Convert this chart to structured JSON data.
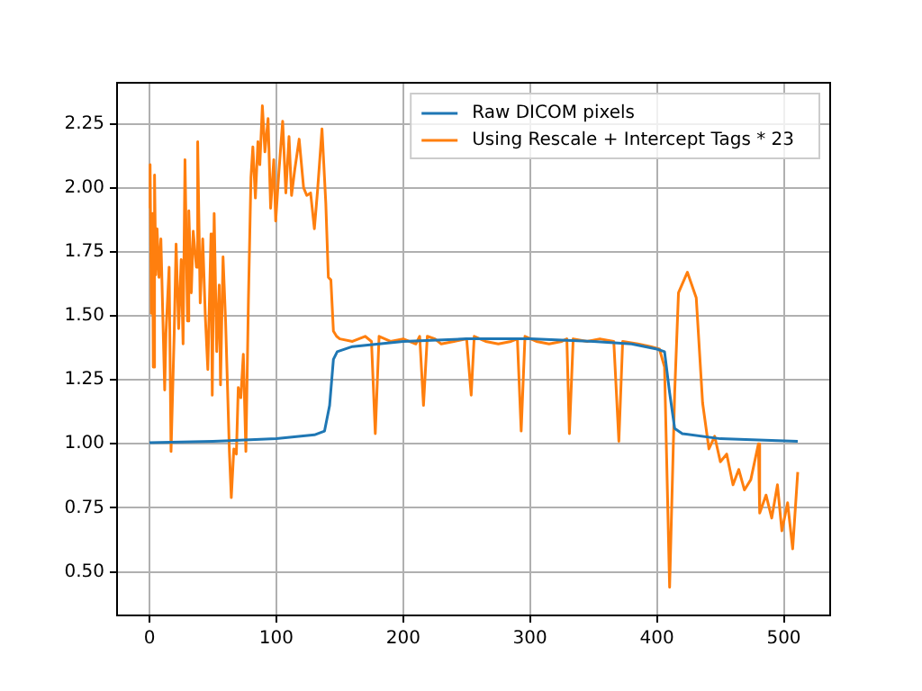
{
  "chart_data": {
    "type": "line",
    "xlim": [
      -25.55,
      536.55
    ],
    "ylim": [
      0.33,
      2.41
    ],
    "xticks": [
      0,
      100,
      200,
      300,
      400,
      500
    ],
    "yticks": [
      {
        "value": 0.5,
        "label": "0.50"
      },
      {
        "value": 0.75,
        "label": "0.75"
      },
      {
        "value": 1.0,
        "label": "1.00"
      },
      {
        "value": 1.25,
        "label": "1.25"
      },
      {
        "value": 1.5,
        "label": "1.50"
      },
      {
        "value": 1.75,
        "label": "1.75"
      },
      {
        "value": 2.0,
        "label": "2.00"
      },
      {
        "value": 2.25,
        "label": "2.25"
      }
    ],
    "grid": true,
    "legend": "top right",
    "marker": "none",
    "line_style": "solid",
    "series": [
      {
        "name": "Raw DICOM pixels",
        "color": "#1f77b4",
        "x": [
          0,
          50,
          100,
          130,
          138,
          142,
          145,
          148,
          160,
          200,
          250,
          300,
          350,
          380,
          400,
          406,
          410,
          414,
          420,
          450,
          480,
          511
        ],
        "values": [
          1.005,
          1.01,
          1.02,
          1.035,
          1.05,
          1.15,
          1.33,
          1.36,
          1.38,
          1.4,
          1.41,
          1.41,
          1.4,
          1.39,
          1.37,
          1.36,
          1.2,
          1.06,
          1.04,
          1.02,
          1.015,
          1.01
        ]
      },
      {
        "name": "Using Rescale + Intercept Tags * 23",
        "color": "#ff7f0e",
        "x": [
          0,
          0.5,
          1.5,
          2.4,
          3,
          4,
          5,
          6,
          7.5,
          9,
          12,
          13,
          15.5,
          17,
          19.5,
          21,
          23,
          25,
          26.5,
          28,
          30,
          31,
          33,
          34.5,
          37,
          38,
          40,
          42,
          44,
          46,
          48.5,
          49.5,
          51,
          53,
          55,
          56,
          58,
          60,
          63,
          64.5,
          66.5,
          68.5,
          70,
          72,
          74,
          76,
          78,
          80,
          81.5,
          83.5,
          85.5,
          87,
          89,
          91,
          93.5,
          95.5,
          98,
          99.5,
          102,
          105,
          107.5,
          110,
          112,
          114.5,
          118,
          121.5,
          124,
          127,
          130,
          132.5,
          136,
          139,
          141,
          143,
          145,
          147.5,
          150,
          160,
          170,
          175,
          178,
          181,
          190,
          200,
          210,
          213,
          216,
          219,
          225,
          230,
          240,
          250,
          253.6,
          256,
          265,
          275,
          285,
          290,
          293,
          296,
          305,
          315,
          325,
          329,
          331,
          334,
          345,
          355,
          366,
          370,
          373,
          385,
          395,
          402,
          406,
          410,
          414,
          417,
          424,
          431,
          436,
          441,
          445.5,
          450,
          455,
          460,
          464.5,
          469,
          474,
          480,
          481,
          486,
          490.5,
          495,
          498.5,
          503,
          507,
          511
        ],
        "values": [
          1.92,
          2.09,
          1.51,
          1.9,
          1.3,
          2.05,
          1.66,
          1.84,
          1.65,
          1.8,
          1.21,
          1.43,
          1.69,
          0.97,
          1.43,
          1.78,
          1.45,
          1.72,
          1.39,
          2.11,
          1.48,
          1.91,
          1.59,
          1.83,
          1.69,
          2.18,
          1.55,
          1.8,
          1.5,
          1.29,
          1.82,
          1.19,
          1.9,
          1.36,
          1.62,
          1.23,
          1.73,
          1.48,
          0.97,
          0.79,
          0.98,
          0.96,
          1.22,
          1.18,
          1.35,
          0.97,
          1.56,
          2.04,
          2.16,
          1.96,
          2.18,
          2.09,
          2.32,
          2.14,
          2.27,
          1.92,
          2.11,
          1.87,
          2.06,
          2.26,
          1.98,
          2.2,
          1.97,
          2.07,
          2.19,
          2.0,
          1.97,
          1.98,
          1.84,
          1.99,
          2.23,
          1.94,
          1.65,
          1.64,
          1.44,
          1.42,
          1.41,
          1.4,
          1.42,
          1.4,
          1.04,
          1.42,
          1.4,
          1.41,
          1.39,
          1.42,
          1.15,
          1.42,
          1.41,
          1.39,
          1.4,
          1.41,
          1.19,
          1.42,
          1.4,
          1.39,
          1.4,
          1.41,
          1.05,
          1.42,
          1.4,
          1.39,
          1.4,
          1.41,
          1.04,
          1.41,
          1.4,
          1.41,
          1.4,
          1.01,
          1.4,
          1.39,
          1.38,
          1.37,
          1.3,
          0.44,
          1.2,
          1.59,
          1.67,
          1.57,
          1.16,
          0.98,
          1.03,
          0.93,
          0.96,
          0.84,
          0.9,
          0.82,
          0.86,
          1.0,
          0.73,
          0.8,
          0.71,
          0.84,
          0.66,
          0.77,
          0.59,
          0.89
        ]
      }
    ]
  }
}
